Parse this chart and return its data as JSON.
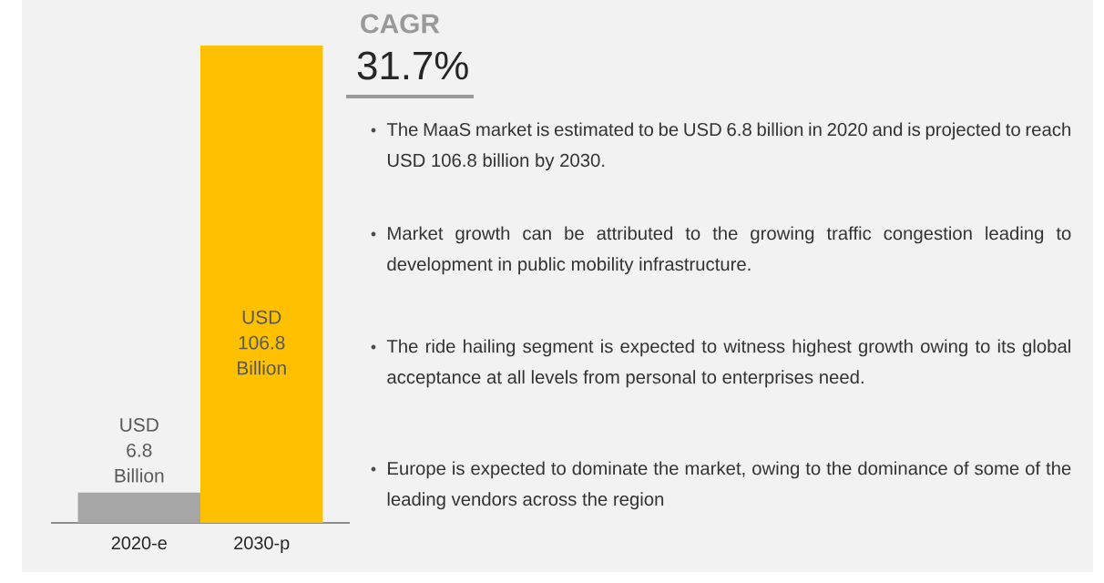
{
  "chart_data": {
    "type": "bar",
    "categories": [
      "2020-e",
      "2030-p"
    ],
    "values": [
      6.8,
      106.8
    ],
    "colors": [
      "#a6a6a6",
      "#ffc000"
    ],
    "value_labels": [
      "USD 6.8 Billion",
      "USD 106.8 Billion"
    ],
    "annotations": [
      "CAGR",
      "31.7%",
      "The MaaS market is estimated to be USD 6.8 billion in 2020 and is projected to reach USD 106.8 billion by 2030.",
      "Market growth can be attributed to the growing traffic congestion leading to development in public mobility infrastructure.",
      "The ride hailing segment is expected to witness highest growth owing to its global acceptance at all levels from personal to enterprises need.",
      "Europe is expected to dominate the market, owing to the dominance of some of the leading vendors across the region"
    ]
  }
}
